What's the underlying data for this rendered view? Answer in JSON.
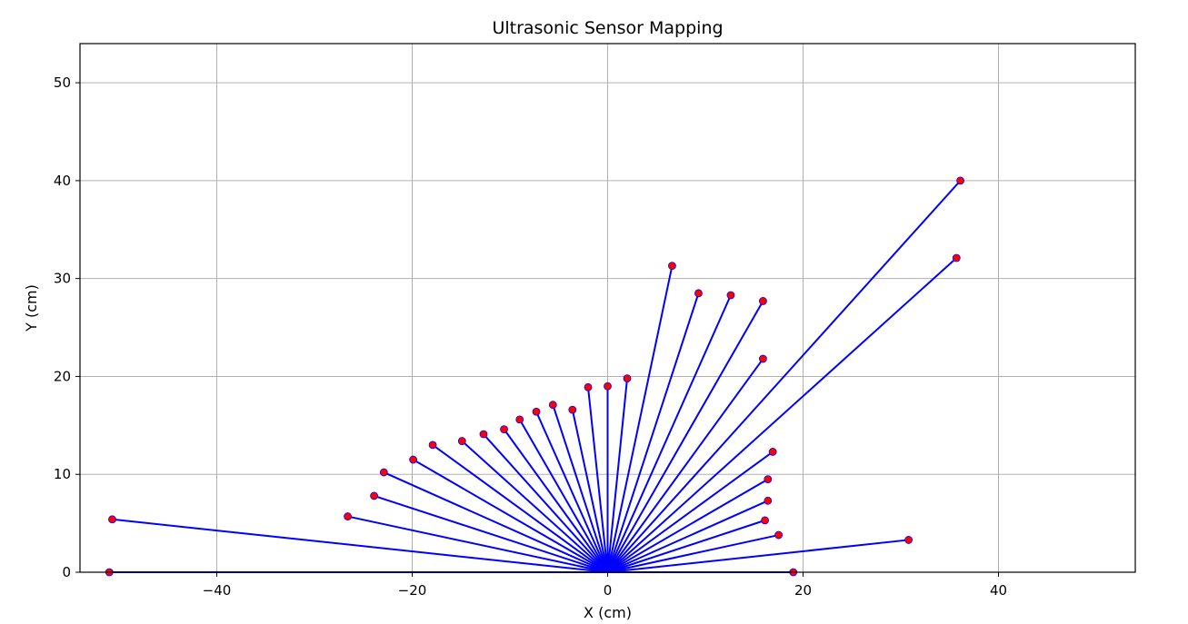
{
  "chart_data": {
    "type": "scatter",
    "title": "Ultrasonic Sensor Mapping",
    "xlabel": "X (cm)",
    "ylabel": "Y (cm)",
    "xlim": [
      -54,
      54
    ],
    "ylim": [
      0,
      54
    ],
    "xticks": [
      -40,
      -20,
      0,
      20,
      40
    ],
    "yticks": [
      0,
      10,
      20,
      30,
      40,
      50
    ],
    "grid": true,
    "origin": [
      0,
      0
    ],
    "colors": {
      "ray": "#0000ff",
      "point": "#ff0000",
      "point_edge": "#0000ff",
      "grid": "#b0b0b0"
    },
    "points": [
      {
        "x": 19.0,
        "y": 0.0
      },
      {
        "x": 30.8,
        "y": 3.3
      },
      {
        "x": 17.5,
        "y": 3.8
      },
      {
        "x": 16.1,
        "y": 5.3
      },
      {
        "x": 16.4,
        "y": 7.3
      },
      {
        "x": 16.4,
        "y": 9.5
      },
      {
        "x": 16.9,
        "y": 12.3
      },
      {
        "x": 35.7,
        "y": 32.1
      },
      {
        "x": 36.1,
        "y": 40.0
      },
      {
        "x": 15.9,
        "y": 21.8
      },
      {
        "x": 15.9,
        "y": 27.7
      },
      {
        "x": 12.6,
        "y": 28.3
      },
      {
        "x": 9.3,
        "y": 28.5
      },
      {
        "x": 6.6,
        "y": 31.3
      },
      {
        "x": 2.0,
        "y": 19.8
      },
      {
        "x": 0.0,
        "y": 19.0
      },
      {
        "x": -2.0,
        "y": 18.9
      },
      {
        "x": -3.6,
        "y": 16.6
      },
      {
        "x": -5.6,
        "y": 17.1
      },
      {
        "x": -7.3,
        "y": 16.4
      },
      {
        "x": -9.0,
        "y": 15.6
      },
      {
        "x": -10.6,
        "y": 14.6
      },
      {
        "x": -12.7,
        "y": 14.1
      },
      {
        "x": -14.9,
        "y": 13.4
      },
      {
        "x": -17.9,
        "y": 13.0
      },
      {
        "x": -19.9,
        "y": 11.5
      },
      {
        "x": -22.9,
        "y": 10.2
      },
      {
        "x": -23.9,
        "y": 7.8
      },
      {
        "x": -26.6,
        "y": 5.7
      },
      {
        "x": -50.7,
        "y": 5.4
      },
      {
        "x": -51.0,
        "y": 0.0
      }
    ]
  }
}
